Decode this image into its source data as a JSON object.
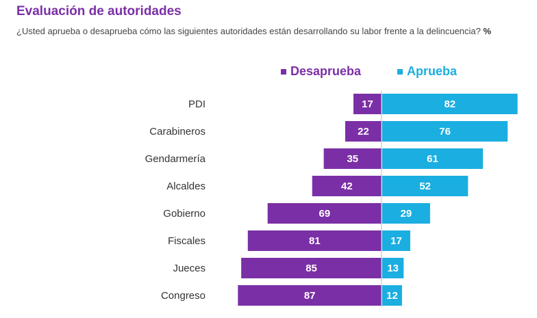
{
  "title": "Evaluación de autoridades",
  "subtitle": "¿Usted aprueba o desaprueba cómo las siguientes autoridades están desarrollando su labor frente a la delincuencia?",
  "unit": "%",
  "colors": {
    "desaprueba": "#7B2FA6",
    "aprueba": "#1BAEE0",
    "title": "#7B2FA6"
  },
  "chart_data": {
    "type": "bar",
    "orientation": "horizontal-diverging",
    "title": "Evaluación de autoridades",
    "categories": [
      "PDI",
      "Carabineros",
      "Gendarmería",
      "Alcaldes",
      "Gobierno",
      "Fiscales",
      "Jueces",
      "Congreso"
    ],
    "series": [
      {
        "name": "Desaprueba",
        "values": [
          17,
          22,
          35,
          42,
          69,
          81,
          85,
          87
        ]
      },
      {
        "name": "Aprueba",
        "values": [
          82,
          76,
          61,
          52,
          29,
          17,
          13,
          12
        ]
      }
    ],
    "legend": "top",
    "xlabel": "",
    "ylabel": "%"
  }
}
